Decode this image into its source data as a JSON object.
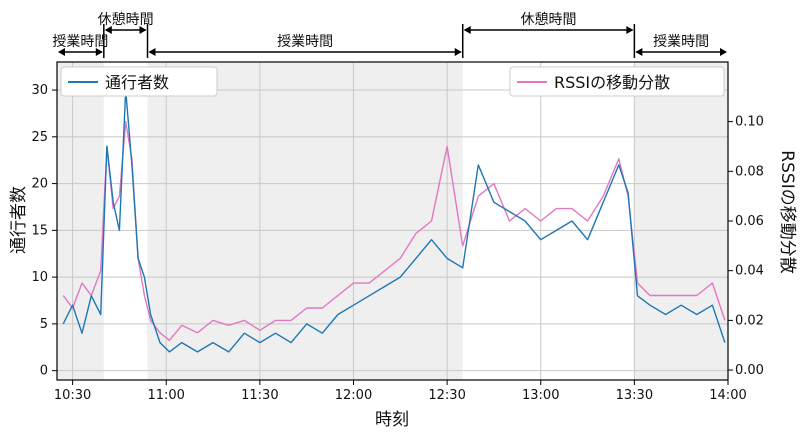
{
  "chart_data": {
    "type": "line",
    "xlabel": "時刻",
    "ylabel_left": "通行者数",
    "ylabel_right": "RSSIの移動分散",
    "xlim": [
      "10:25",
      "14:00"
    ],
    "ylim_left": [
      -1,
      33
    ],
    "ylim_right": [
      -0.004,
      0.124
    ],
    "x_ticks": [
      "10:30",
      "11:00",
      "11:30",
      "12:00",
      "12:30",
      "13:00",
      "13:30",
      "14:00"
    ],
    "y_ticks_left": [
      "0",
      "5",
      "10",
      "15",
      "20",
      "25",
      "30"
    ],
    "y_ticks_right": [
      "0.00",
      "0.02",
      "0.04",
      "0.06",
      "0.08",
      "0.10"
    ],
    "grid": true,
    "legend": {
      "left": "通行者数",
      "right": "RSSIの移動分散"
    },
    "periods": [
      {
        "label": "授業時間",
        "start": "10:25",
        "end": "10:40",
        "shaded": true
      },
      {
        "label": "休憩時間",
        "start": "10:40",
        "end": "10:54",
        "shaded": false
      },
      {
        "label": "授業時間",
        "start": "10:54",
        "end": "12:35",
        "shaded": true
      },
      {
        "label": "休憩時間",
        "start": "12:35",
        "end": "13:30",
        "shaded": false
      },
      {
        "label": "授業時間",
        "start": "13:30",
        "end": "14:00",
        "shaded": true
      }
    ],
    "series": [
      {
        "name": "通行者数",
        "axis": "left",
        "color": "#1f77b4",
        "x": [
          "10:27",
          "10:30",
          "10:33",
          "10:36",
          "10:39",
          "10:41",
          "10:43",
          "10:45",
          "10:47",
          "10:49",
          "10:51",
          "10:53",
          "10:55",
          "10:58",
          "11:01",
          "11:05",
          "11:10",
          "11:15",
          "11:20",
          "11:25",
          "11:30",
          "11:35",
          "11:40",
          "11:45",
          "11:50",
          "11:55",
          "12:00",
          "12:05",
          "12:10",
          "12:15",
          "12:20",
          "12:25",
          "12:30",
          "12:35",
          "12:40",
          "12:45",
          "12:50",
          "12:55",
          "13:00",
          "13:05",
          "13:10",
          "13:15",
          "13:20",
          "13:25",
          "13:28",
          "13:31",
          "13:35",
          "13:40",
          "13:45",
          "13:50",
          "13:55",
          "13:59"
        ],
        "values": [
          5,
          7,
          4,
          8,
          6,
          24,
          18,
          15,
          30,
          22,
          12,
          10,
          6,
          3,
          2,
          3,
          2,
          3,
          2,
          4,
          3,
          4,
          3,
          5,
          4,
          6,
          7,
          8,
          9,
          10,
          12,
          14,
          12,
          11,
          22,
          18,
          17,
          16,
          14,
          15,
          16,
          14,
          18,
          22,
          19,
          8,
          7,
          6,
          7,
          6,
          7,
          3
        ]
      },
      {
        "name": "RSSIの移動分散",
        "axis": "right",
        "color": "#e377c2",
        "x": [
          "10:27",
          "10:30",
          "10:33",
          "10:36",
          "10:39",
          "10:41",
          "10:43",
          "10:45",
          "10:47",
          "10:49",
          "10:51",
          "10:53",
          "10:55",
          "10:58",
          "11:01",
          "11:05",
          "11:10",
          "11:15",
          "11:20",
          "11:25",
          "11:30",
          "11:35",
          "11:40",
          "11:45",
          "11:50",
          "11:55",
          "12:00",
          "12:05",
          "12:10",
          "12:15",
          "12:20",
          "12:25",
          "12:30",
          "12:35",
          "12:40",
          "12:45",
          "12:50",
          "12:55",
          "13:00",
          "13:05",
          "13:10",
          "13:15",
          "13:20",
          "13:25",
          "13:28",
          "13:31",
          "13:35",
          "13:40",
          "13:45",
          "13:50",
          "13:55",
          "13:59"
        ],
        "values": [
          0.03,
          0.025,
          0.035,
          0.03,
          0.04,
          0.09,
          0.065,
          0.07,
          0.1,
          0.085,
          0.045,
          0.03,
          0.02,
          0.015,
          0.012,
          0.018,
          0.015,
          0.02,
          0.018,
          0.02,
          0.016,
          0.02,
          0.02,
          0.025,
          0.025,
          0.03,
          0.035,
          0.035,
          0.04,
          0.045,
          0.055,
          0.06,
          0.09,
          0.05,
          0.07,
          0.075,
          0.06,
          0.065,
          0.06,
          0.065,
          0.065,
          0.06,
          0.07,
          0.085,
          0.07,
          0.035,
          0.03,
          0.03,
          0.03,
          0.03,
          0.035,
          0.02
        ]
      }
    ]
  }
}
